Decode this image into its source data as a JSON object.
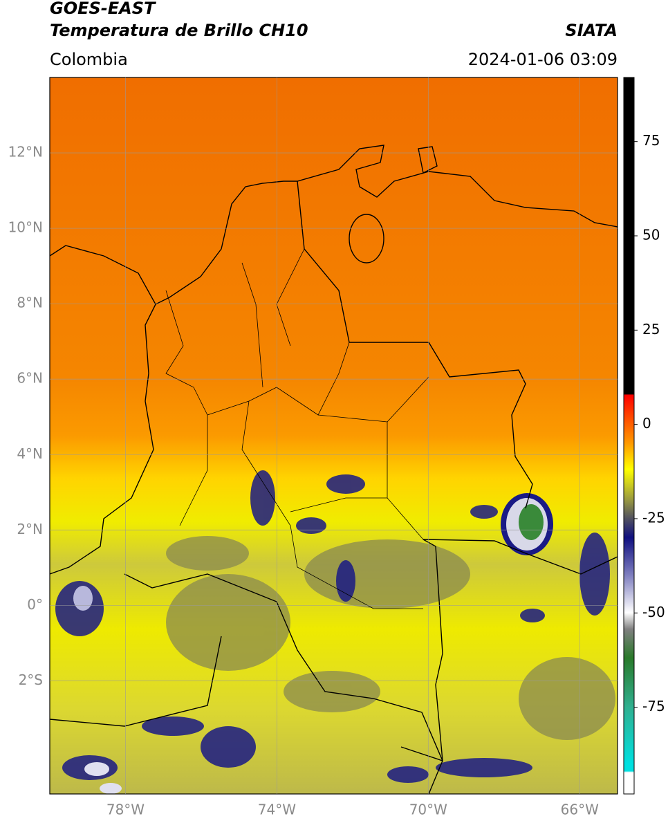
{
  "header": {
    "title": "GOES-EAST",
    "subtitle": "Temperatura de Brillo CH10",
    "source": "SIATA",
    "region": "Colombia",
    "datetime": "2024-01-06 03:09"
  },
  "map": {
    "xlim": [
      -80,
      -65
    ],
    "ylim": [
      -5,
      14
    ],
    "xticks": [
      {
        "value": -78,
        "label": "78°W"
      },
      {
        "value": -74,
        "label": "74°W"
      },
      {
        "value": -70,
        "label": "70°W"
      },
      {
        "value": -66,
        "label": "66°W"
      }
    ],
    "yticks": [
      {
        "value": 12,
        "label": "12°N"
      },
      {
        "value": 10,
        "label": "10°N"
      },
      {
        "value": 8,
        "label": "8°N"
      },
      {
        "value": 6,
        "label": "6°N"
      },
      {
        "value": 4,
        "label": "4°N"
      },
      {
        "value": 2,
        "label": "2°N"
      },
      {
        "value": 0,
        "label": "0°"
      },
      {
        "value": -2,
        "label": "2°S"
      }
    ],
    "grid": true
  },
  "colorbar": {
    "lim": [
      -98,
      92
    ],
    "ticks": [
      75,
      50,
      25,
      0,
      -25,
      -50,
      -75
    ]
  }
}
